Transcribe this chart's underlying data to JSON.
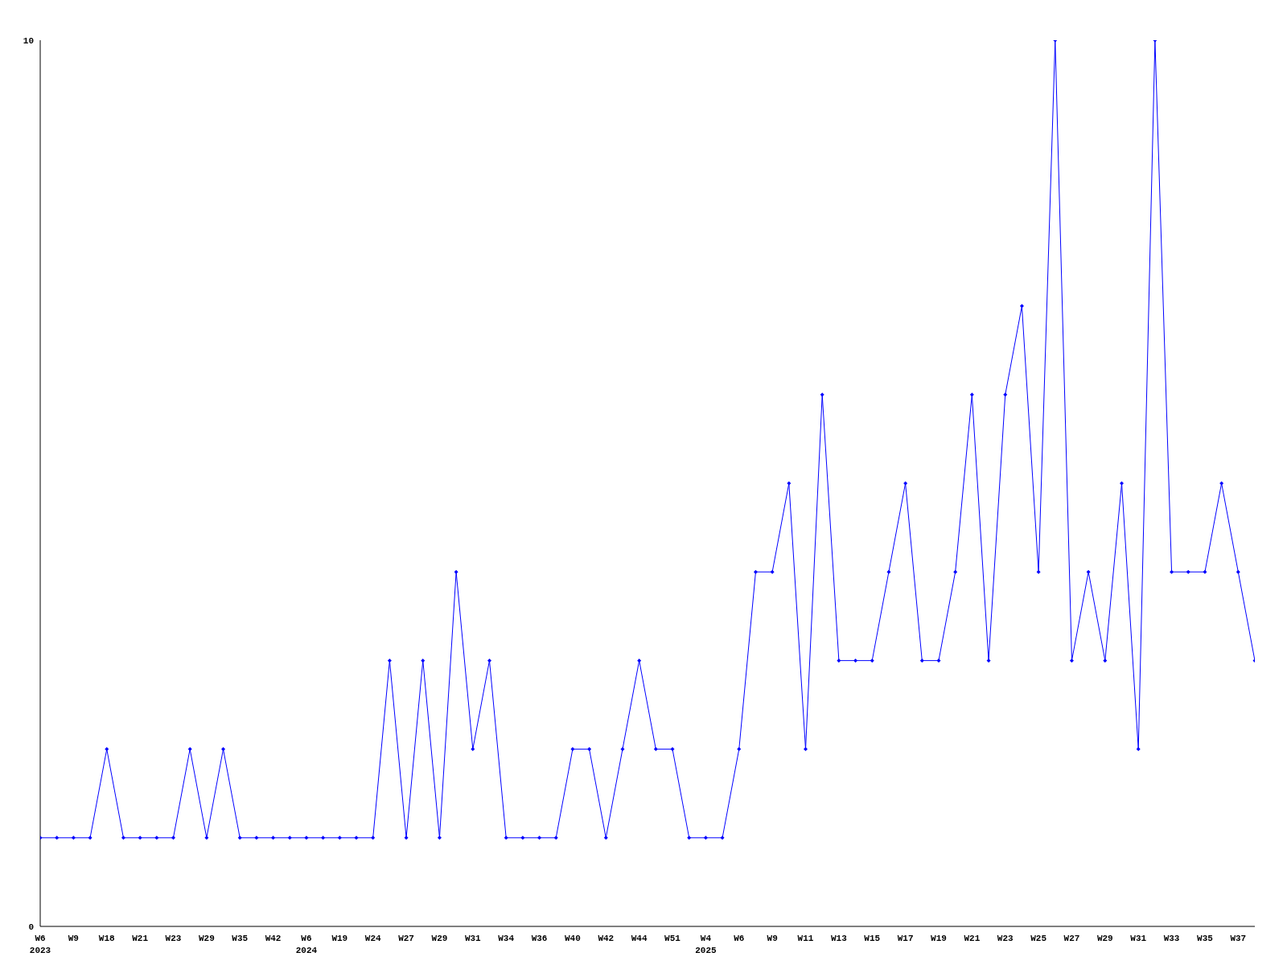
{
  "chart_data": {
    "type": "line",
    "categories": [
      "W6\n2023",
      null,
      "W9",
      null,
      "W18",
      null,
      "W21",
      null,
      "W23",
      null,
      "W29",
      null,
      "W35",
      null,
      "W42",
      null,
      "W6\n2024",
      null,
      "W19",
      null,
      "W24",
      null,
      "W27",
      null,
      "W29",
      null,
      "W31",
      null,
      "W34",
      null,
      "W36",
      null,
      "W40",
      null,
      "W42",
      null,
      "W44",
      null,
      "W51",
      null,
      "W4\n2025",
      null,
      "W6",
      null,
      "W9",
      null,
      "W11",
      null,
      "W13",
      null,
      "W15",
      null,
      "W17",
      null,
      "W19",
      null,
      "W21",
      null,
      "W23",
      null,
      "W25",
      null,
      "W27",
      null,
      "W29",
      null,
      "W31",
      null,
      "W33",
      null,
      "W35",
      null,
      "W37",
      null
    ],
    "series": [
      {
        "color": "#0000ff",
        "values": [
          1,
          1,
          1,
          1,
          2,
          1,
          1,
          1,
          1,
          2,
          1,
          2,
          1,
          1,
          1,
          1,
          1,
          1,
          1,
          1,
          1,
          3,
          1,
          3,
          1,
          4,
          2,
          3,
          1,
          1,
          1,
          1,
          2,
          2,
          1,
          2,
          3,
          2,
          2,
          1,
          1,
          1,
          2,
          4,
          4,
          5,
          2,
          6,
          3,
          3,
          3,
          4,
          5,
          3,
          3,
          4,
          6,
          3,
          6,
          7,
          4,
          10,
          3,
          4,
          3,
          5,
          2,
          10,
          4,
          4,
          4,
          5,
          4,
          3
        ]
      }
    ],
    "ylim": [
      0,
      10
    ],
    "yticks": [
      0,
      10
    ],
    "marker": "diamond",
    "line_style": "solid",
    "grid": false
  }
}
